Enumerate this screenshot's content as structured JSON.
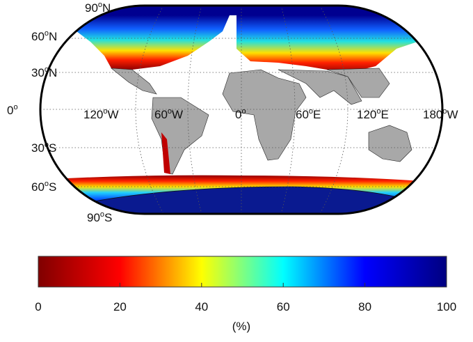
{
  "map": {
    "degree_mark": "o",
    "lat_labels": [
      {
        "deg": "90",
        "hemi": "N"
      },
      {
        "deg": "60",
        "hemi": "N"
      },
      {
        "deg": "30",
        "hemi": "N"
      },
      {
        "deg": "0",
        "hemi": ""
      },
      {
        "deg": "30",
        "hemi": "S"
      },
      {
        "deg": "60",
        "hemi": "S"
      },
      {
        "deg": "90",
        "hemi": "S"
      }
    ],
    "lon_labels": [
      {
        "deg": "120",
        "hemi": "W"
      },
      {
        "deg": "60",
        "hemi": "W"
      },
      {
        "deg": "0",
        "hemi": ""
      },
      {
        "deg": "60",
        "hemi": "E"
      },
      {
        "deg": "120",
        "hemi": "E"
      },
      {
        "deg": "180",
        "hemi": "W"
      }
    ]
  },
  "colorbar": {
    "lim": [
      0,
      100
    ],
    "ticks": [
      0,
      20,
      40,
      60,
      80,
      100
    ],
    "label": "(%)",
    "colors": [
      "#800000",
      "#ff0000",
      "#ffff00",
      "#00ffff",
      "#0000ff",
      "#000080"
    ]
  }
}
